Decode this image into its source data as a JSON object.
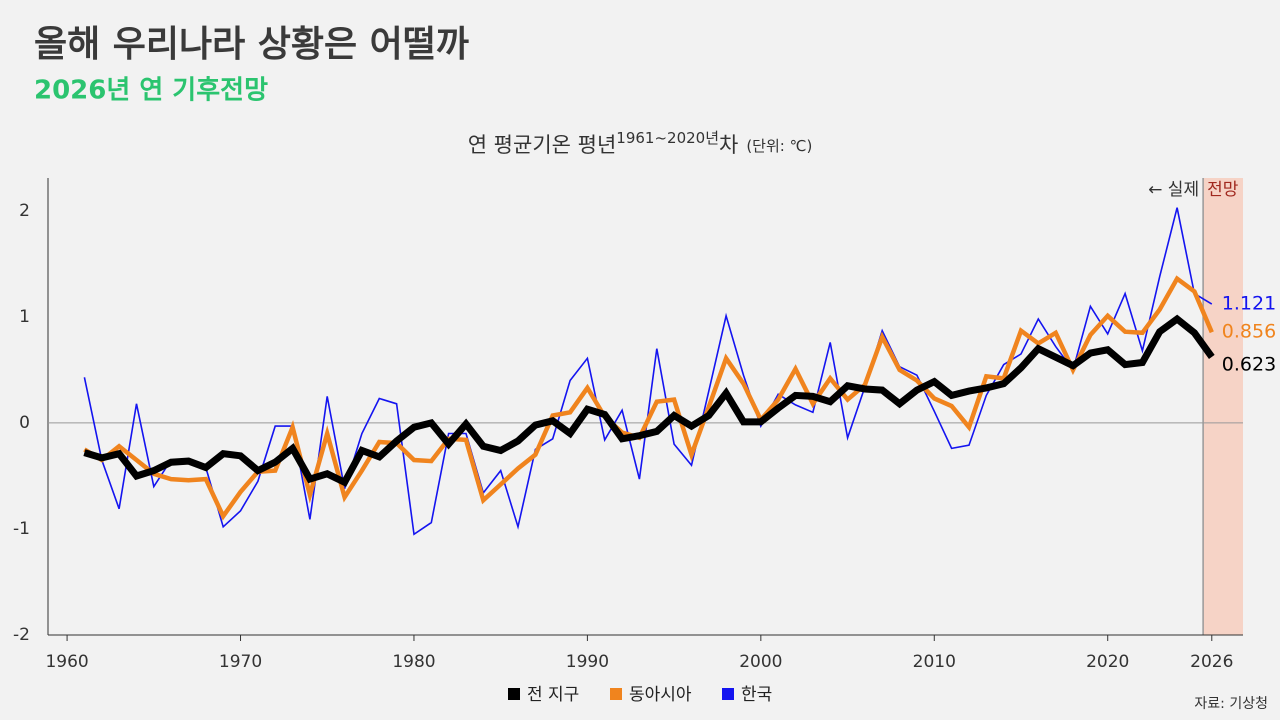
{
  "chart_data": {
    "type": "line",
    "title": "올해 우리나라 상황은 어떨까",
    "subtitle": "2026년 연 기후전망",
    "chart_title": {
      "main": "연 평균기온 평년",
      "superscript": "1961~2020년",
      "suffix": "차",
      "unit": "(단위: ℃)"
    },
    "annotations": {
      "actual": "← 실제",
      "forecast": "전망"
    },
    "source": "자료: 기상청",
    "forecast_start": 2025.5,
    "x": [
      1961,
      1962,
      1963,
      1964,
      1965,
      1966,
      1967,
      1968,
      1969,
      1970,
      1971,
      1972,
      1973,
      1974,
      1975,
      1976,
      1977,
      1978,
      1979,
      1980,
      1981,
      1982,
      1983,
      1984,
      1985,
      1986,
      1987,
      1988,
      1989,
      1990,
      1991,
      1992,
      1993,
      1994,
      1995,
      1996,
      1997,
      1998,
      1999,
      2000,
      2001,
      2002,
      2003,
      2004,
      2005,
      2006,
      2007,
      2008,
      2009,
      2010,
      2011,
      2012,
      2013,
      2014,
      2015,
      2016,
      2017,
      2018,
      2019,
      2020,
      2021,
      2022,
      2023,
      2024,
      2025,
      2026
    ],
    "series": [
      {
        "name": "전 지구",
        "color": "#000000",
        "values": [
          -0.28,
          -0.33,
          -0.29,
          -0.5,
          -0.45,
          -0.37,
          -0.36,
          -0.42,
          -0.29,
          -0.31,
          -0.45,
          -0.37,
          -0.24,
          -0.53,
          -0.48,
          -0.56,
          -0.26,
          -0.32,
          -0.17,
          -0.04,
          0.0,
          -0.2,
          -0.01,
          -0.22,
          -0.26,
          -0.17,
          -0.02,
          0.02,
          -0.1,
          0.13,
          0.08,
          -0.15,
          -0.12,
          -0.08,
          0.07,
          -0.03,
          0.07,
          0.28,
          0.01,
          0.01,
          0.14,
          0.26,
          0.25,
          0.2,
          0.35,
          0.32,
          0.31,
          0.18,
          0.31,
          0.39,
          0.26,
          0.3,
          0.33,
          0.37,
          0.52,
          0.7,
          0.62,
          0.54,
          0.66,
          0.69,
          0.55,
          0.57,
          0.86,
          0.98,
          0.85,
          0.623
        ]
      },
      {
        "name": "동아시아",
        "color": "#f0841e",
        "values": [
          -0.25,
          -0.35,
          -0.22,
          -0.35,
          -0.48,
          -0.53,
          -0.54,
          -0.53,
          -0.88,
          -0.65,
          -0.46,
          -0.45,
          -0.04,
          -0.68,
          -0.1,
          -0.7,
          -0.45,
          -0.18,
          -0.19,
          -0.35,
          -0.36,
          -0.15,
          -0.16,
          -0.73,
          -0.58,
          -0.43,
          -0.3,
          0.07,
          0.1,
          0.33,
          0.06,
          -0.09,
          -0.14,
          0.2,
          0.22,
          -0.3,
          0.15,
          0.61,
          0.37,
          0.03,
          0.22,
          0.51,
          0.18,
          0.42,
          0.22,
          0.36,
          0.81,
          0.5,
          0.4,
          0.23,
          0.16,
          -0.04,
          0.44,
          0.42,
          0.87,
          0.75,
          0.85,
          0.5,
          0.83,
          1.01,
          0.86,
          0.85,
          1.07,
          1.36,
          1.24,
          0.856
        ]
      },
      {
        "name": "한국",
        "color": "#1414f0",
        "values": [
          0.43,
          -0.35,
          -0.81,
          0.18,
          -0.6,
          -0.35,
          -0.35,
          -0.42,
          -0.98,
          -0.83,
          -0.55,
          -0.03,
          -0.03,
          -0.91,
          0.25,
          -0.62,
          -0.1,
          0.23,
          0.18,
          -1.05,
          -0.94,
          -0.1,
          -0.1,
          -0.66,
          -0.45,
          -0.98,
          -0.25,
          -0.15,
          0.4,
          0.61,
          -0.16,
          0.12,
          -0.53,
          0.7,
          -0.2,
          -0.4,
          0.3,
          1.01,
          0.45,
          -0.03,
          0.27,
          0.17,
          0.1,
          0.76,
          -0.14,
          0.34,
          0.87,
          0.53,
          0.45,
          0.11,
          -0.24,
          -0.21,
          0.26,
          0.55,
          0.65,
          0.98,
          0.72,
          0.5,
          1.1,
          0.84,
          1.22,
          0.68,
          1.38,
          2.03,
          1.22,
          1.121
        ]
      }
    ],
    "xlim": [
      1958.9,
      2027.8
    ],
    "ylim": [
      -2,
      2.31
    ],
    "xticks": [
      1960,
      1970,
      1980,
      1990,
      2000,
      2010,
      2020,
      2026
    ],
    "yticks": [
      -2,
      -1,
      0,
      1,
      2
    ]
  }
}
